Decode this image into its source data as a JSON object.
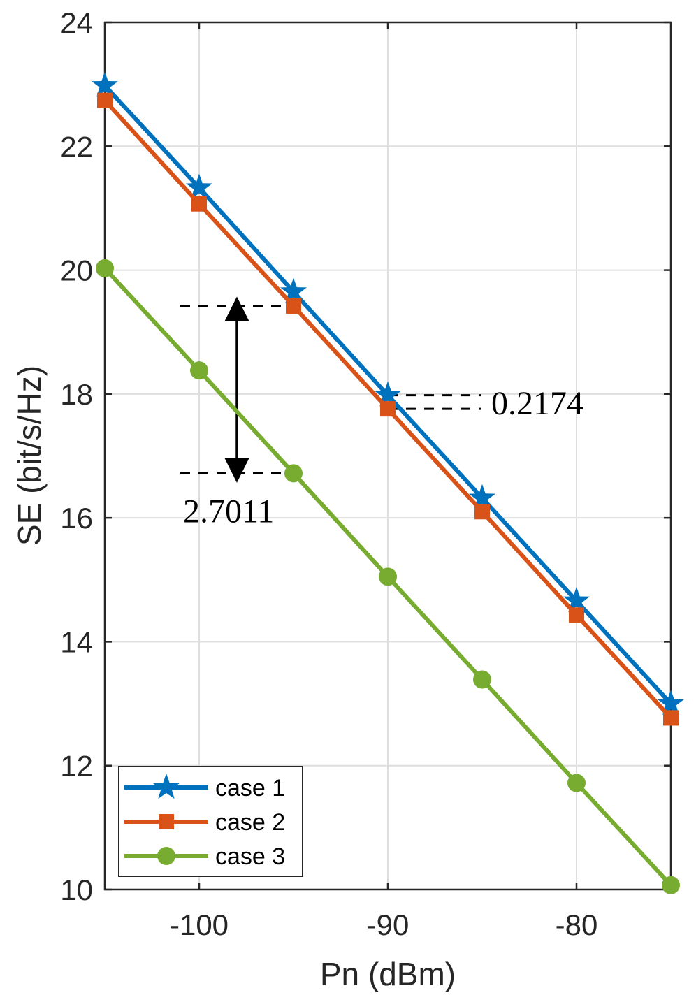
{
  "chart_data": {
    "type": "line",
    "title": "",
    "xlabel": "Pn (dBm)",
    "ylabel": "SE (bit/s/Hz)",
    "xlim": [
      -105,
      -75
    ],
    "ylim": [
      10,
      24
    ],
    "xticks": [
      -100,
      -90,
      -80
    ],
    "yticks": [
      10,
      12,
      14,
      16,
      18,
      20,
      22,
      24
    ],
    "grid": true,
    "legend_position": "bottom-left",
    "x": [
      -105,
      -100,
      -95,
      -90,
      -85,
      -80,
      -75
    ],
    "series": [
      {
        "name": "case 1",
        "color": "#0072BD",
        "marker": "star",
        "values": [
          22.98,
          21.33,
          19.65,
          17.98,
          16.32,
          14.66,
          13.0
        ]
      },
      {
        "name": "case 2",
        "color": "#D95319",
        "marker": "square",
        "values": [
          22.74,
          21.07,
          19.42,
          17.76,
          16.1,
          14.43,
          12.77
        ]
      },
      {
        "name": "case 3",
        "color": "#77AC30",
        "marker": "circle",
        "values": [
          20.03,
          18.38,
          16.72,
          15.05,
          13.39,
          11.72,
          10.07
        ]
      }
    ],
    "annotations": [
      {
        "text": "2.7011",
        "x_from": -101,
        "x_to": -95,
        "y_top": 19.42,
        "y_bottom": 16.72,
        "arrow_x": -98
      },
      {
        "text": "0.2174",
        "x_from": -90,
        "x_to": -85,
        "y_top": 17.98,
        "y_bottom": 17.76
      }
    ]
  }
}
